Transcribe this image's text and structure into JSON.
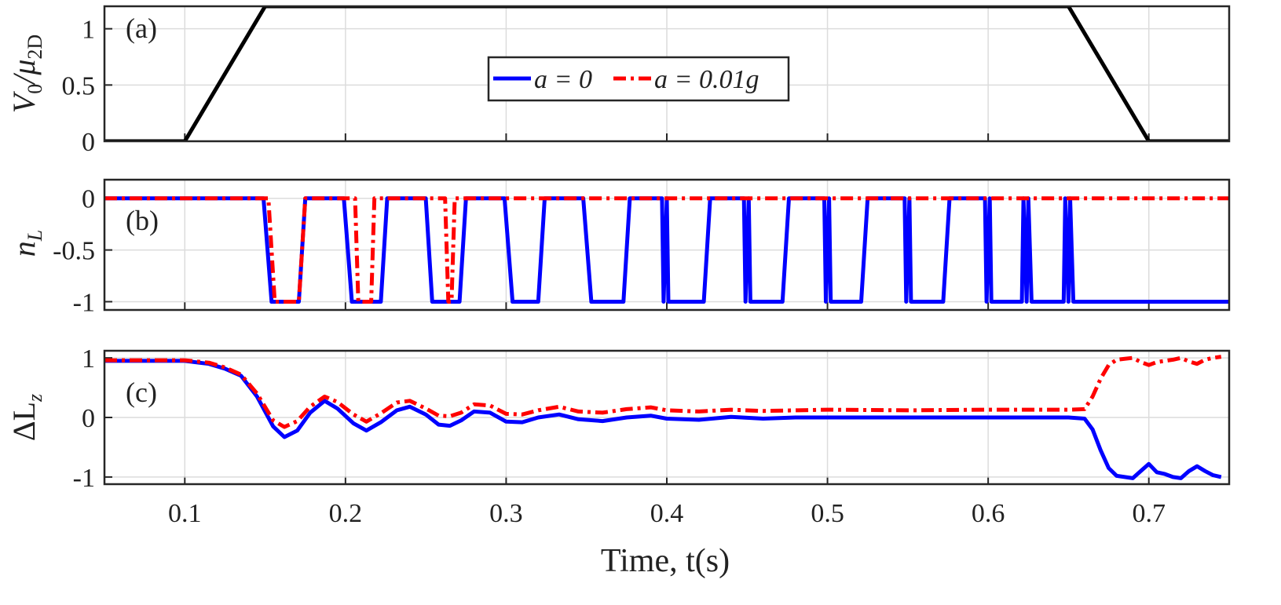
{
  "chart_data": [
    {
      "panel": "a",
      "panel_label": "(a)",
      "type": "line",
      "ylabel_main": "V",
      "ylabel_sub": "0",
      "ylabel_sep": "/",
      "ylabel_mu": "μ",
      "ylabel_mu_sub": "2D",
      "xlim": [
        0.05,
        0.75
      ],
      "ylim": [
        0,
        1.2
      ],
      "yticks": [
        "0",
        "0.5",
        "1"
      ],
      "ytick_values": [
        0,
        0.5,
        1
      ],
      "grid": true,
      "series": [
        {
          "name": "V0/mu2D",
          "color": "#000000",
          "style": "solid",
          "x": [
            0.05,
            0.1,
            0.15,
            0.65,
            0.7,
            0.75
          ],
          "y": [
            0,
            0,
            1.2,
            1.2,
            0,
            0
          ]
        }
      ],
      "legend": {
        "entries": [
          {
            "text": "a = 0",
            "color": "#0000ff",
            "style": "solid"
          },
          {
            "text": "a = 0.01g",
            "color": "#ff0000",
            "style": "dashdot"
          }
        ],
        "placement": "center"
      }
    },
    {
      "panel": "b",
      "panel_label": "(b)",
      "type": "line",
      "ylabel_main": "n",
      "ylabel_sub": "L",
      "xlim": [
        0.05,
        0.75
      ],
      "ylim": [
        -1.08,
        0.18
      ],
      "yticks": [
        "-1",
        "-0.5",
        "0"
      ],
      "ytick_values": [
        -1,
        -0.5,
        0
      ],
      "grid": true,
      "series": [
        {
          "name": "a = 0",
          "color": "#0000ff",
          "style": "solid",
          "x": [
            0.05,
            0.149,
            0.154,
            0.171,
            0.175,
            0.199,
            0.204,
            0.222,
            0.226,
            0.25,
            0.254,
            0.271,
            0.275,
            0.299,
            0.304,
            0.32,
            0.324,
            0.348,
            0.353,
            0.373,
            0.377,
            0.397,
            0.398,
            0.4,
            0.401,
            0.403,
            0.423,
            0.427,
            0.448,
            0.449,
            0.451,
            0.452,
            0.454,
            0.472,
            0.476,
            0.498,
            0.499,
            0.501,
            0.502,
            0.504,
            0.521,
            0.525,
            0.548,
            0.549,
            0.551,
            0.552,
            0.554,
            0.572,
            0.576,
            0.598,
            0.599,
            0.601,
            0.602,
            0.604,
            0.621,
            0.622,
            0.624,
            0.625,
            0.627,
            0.647,
            0.648,
            0.65,
            0.651,
            0.653,
            0.75
          ],
          "y": [
            0,
            0,
            -1,
            -1,
            0,
            0,
            -1,
            -1,
            0,
            0,
            -1,
            -1,
            0,
            0,
            -1,
            -1,
            0,
            0,
            -1,
            -1,
            0,
            0,
            -1,
            0,
            -1,
            -1,
            -1,
            0,
            0,
            -1,
            0,
            -1,
            -1,
            -1,
            0,
            0,
            -1,
            0,
            -1,
            -1,
            -1,
            0,
            0,
            -1,
            0,
            -1,
            -1,
            -1,
            0,
            0,
            -1,
            0,
            -1,
            -1,
            -1,
            0,
            -1,
            0,
            -1,
            -1,
            0,
            -1,
            0,
            -1,
            -1
          ]
        },
        {
          "name": "a = 0.01g",
          "color": "#ff0000",
          "style": "dashdot",
          "x": [
            0.05,
            0.152,
            0.156,
            0.171,
            0.175,
            0.206,
            0.208,
            0.212,
            0.216,
            0.218,
            0.222,
            0.262,
            0.264,
            0.266,
            0.268,
            0.75
          ],
          "y": [
            0,
            0,
            -1,
            -1,
            0,
            0,
            -1,
            -1,
            -1,
            0,
            0,
            0,
            -1,
            -1,
            0,
            0
          ]
        }
      ]
    },
    {
      "panel": "c",
      "panel_label": "(c)",
      "type": "line",
      "ylabel_main": "ΔL",
      "ylabel_sub": "z",
      "xlabel": "Time, t(s)",
      "xlim": [
        0.05,
        0.75
      ],
      "ylim": [
        -1.12,
        1.12
      ],
      "xticks": [
        "0.1",
        "0.2",
        "0.3",
        "0.4",
        "0.5",
        "0.6",
        "0.7"
      ],
      "xtick_values": [
        0.1,
        0.2,
        0.3,
        0.4,
        0.5,
        0.6,
        0.7
      ],
      "yticks": [
        "-1",
        "0",
        "1"
      ],
      "ytick_values": [
        -1,
        0,
        1
      ],
      "grid": true,
      "series": [
        {
          "name": "a = 0",
          "color": "#0000ff",
          "style": "solid",
          "x": [
            0.05,
            0.1,
            0.115,
            0.125,
            0.135,
            0.145,
            0.155,
            0.162,
            0.17,
            0.178,
            0.187,
            0.195,
            0.205,
            0.213,
            0.222,
            0.232,
            0.24,
            0.25,
            0.258,
            0.265,
            0.272,
            0.28,
            0.29,
            0.3,
            0.31,
            0.32,
            0.333,
            0.345,
            0.36,
            0.375,
            0.39,
            0.4,
            0.42,
            0.44,
            0.46,
            0.48,
            0.5,
            0.55,
            0.6,
            0.65,
            0.66,
            0.665,
            0.67,
            0.675,
            0.68,
            0.69,
            0.695,
            0.7,
            0.705,
            0.71,
            0.715,
            0.72,
            0.725,
            0.73,
            0.735,
            0.74,
            0.745
          ],
          "y": [
            0.95,
            0.95,
            0.9,
            0.82,
            0.7,
            0.35,
            -0.15,
            -0.33,
            -0.22,
            0.08,
            0.28,
            0.15,
            -0.1,
            -0.22,
            -0.08,
            0.12,
            0.18,
            0.05,
            -0.12,
            -0.14,
            -0.05,
            0.1,
            0.08,
            -0.07,
            -0.08,
            0.0,
            0.05,
            -0.03,
            -0.06,
            0.0,
            0.03,
            -0.02,
            -0.04,
            0.01,
            -0.02,
            0.0,
            0.0,
            0.0,
            0.0,
            0.0,
            -0.02,
            -0.2,
            -0.55,
            -0.85,
            -0.98,
            -1.02,
            -0.9,
            -0.78,
            -0.92,
            -0.95,
            -1.0,
            -1.02,
            -0.9,
            -0.82,
            -0.9,
            -0.97,
            -1.0
          ]
        },
        {
          "name": "a = 0.01g",
          "color": "#ff0000",
          "style": "dashdot",
          "x": [
            0.05,
            0.1,
            0.115,
            0.125,
            0.135,
            0.145,
            0.155,
            0.162,
            0.17,
            0.178,
            0.187,
            0.195,
            0.205,
            0.213,
            0.222,
            0.232,
            0.24,
            0.25,
            0.258,
            0.265,
            0.272,
            0.28,
            0.29,
            0.3,
            0.31,
            0.32,
            0.333,
            0.345,
            0.36,
            0.375,
            0.39,
            0.4,
            0.42,
            0.44,
            0.46,
            0.48,
            0.5,
            0.55,
            0.6,
            0.65,
            0.66,
            0.665,
            0.67,
            0.675,
            0.68,
            0.69,
            0.695,
            0.7,
            0.705,
            0.71,
            0.715,
            0.72,
            0.725,
            0.73,
            0.735,
            0.74,
            0.745
          ],
          "y": [
            0.96,
            0.96,
            0.92,
            0.84,
            0.72,
            0.4,
            -0.05,
            -0.16,
            -0.06,
            0.18,
            0.35,
            0.26,
            0.05,
            -0.07,
            0.07,
            0.25,
            0.28,
            0.15,
            0.03,
            0.02,
            0.08,
            0.22,
            0.2,
            0.06,
            0.05,
            0.12,
            0.18,
            0.1,
            0.08,
            0.14,
            0.17,
            0.12,
            0.1,
            0.13,
            0.11,
            0.12,
            0.13,
            0.12,
            0.13,
            0.13,
            0.14,
            0.35,
            0.65,
            0.88,
            0.97,
            1.0,
            0.93,
            0.88,
            0.93,
            0.95,
            0.97,
            1.0,
            0.94,
            0.9,
            0.97,
            1.0,
            1.02
          ]
        }
      ]
    }
  ]
}
